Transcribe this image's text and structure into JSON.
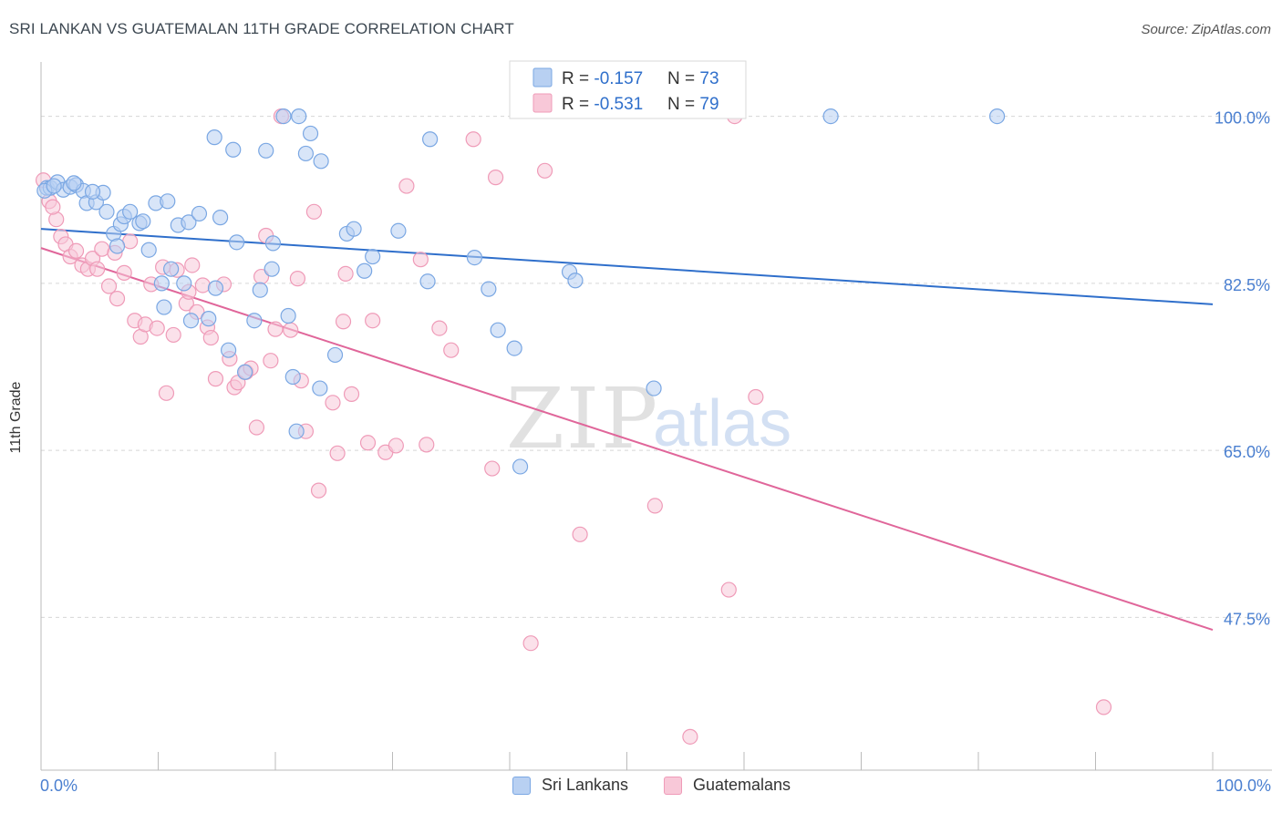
{
  "header": {
    "title": "SRI LANKAN VS GUATEMALAN 11TH GRADE CORRELATION CHART",
    "source": "Source: ZipAtlas.com"
  },
  "watermark": {
    "zip": "ZIP",
    "atlas": "atlas"
  },
  "colors": {
    "blue_fill": "#b8d0f2",
    "blue_stroke": "#7aa7e3",
    "blue_line": "#2f6fcb",
    "pink_fill": "#f8c8d8",
    "pink_stroke": "#ef9bb8",
    "pink_line": "#e0669a",
    "axis_text": "#4a7fd0",
    "grid": "#d6d6d6"
  },
  "legend_top": {
    "rows": [
      {
        "r_label": "R = ",
        "r_value": "-0.157",
        "n_label": "N = ",
        "n_value": "73"
      },
      {
        "r_label": "R = ",
        "r_value": "-0.531",
        "n_label": "N = ",
        "n_value": "79"
      }
    ]
  },
  "legend_bottom": {
    "series1": "Sri Lankans",
    "series2": "Guatemalans"
  },
  "chart_data": {
    "type": "scatter",
    "title": "SRI LANKAN VS GUATEMALAN 11TH GRADE CORRELATION CHART",
    "xlabel": "",
    "ylabel": "11th Grade",
    "xlim": [
      0,
      100
    ],
    "ylim": [
      31.5,
      105.5
    ],
    "x_tick_labels": [
      "0.0%",
      "100.0%"
    ],
    "y_ticks": [
      47.5,
      65.0,
      82.5,
      100.0
    ],
    "y_tick_labels": [
      "47.5%",
      "65.0%",
      "82.5%",
      "100.0%"
    ],
    "grid": true,
    "series": [
      {
        "name": "Sri Lankans",
        "color": "#b8d0f2",
        "R": -0.157,
        "N": 73,
        "trend": {
          "x": [
            0,
            100
          ],
          "y": [
            88.2,
            80.3
          ]
        },
        "points": [
          [
            0.5,
            92.5
          ],
          [
            0.8,
            92.5
          ],
          [
            1.4,
            93.1
          ],
          [
            1.9,
            92.3
          ],
          [
            2.5,
            92.6
          ],
          [
            3.0,
            92.8
          ],
          [
            3.6,
            92.2
          ],
          [
            3.9,
            90.9
          ],
          [
            4.7,
            91.0
          ],
          [
            5.3,
            92.0
          ],
          [
            5.6,
            90.0
          ],
          [
            6.2,
            87.7
          ],
          [
            6.5,
            86.4
          ],
          [
            6.8,
            88.7
          ],
          [
            7.1,
            89.5
          ],
          [
            7.6,
            90.0
          ],
          [
            8.4,
            88.8
          ],
          [
            8.7,
            89.0
          ],
          [
            9.2,
            86.0
          ],
          [
            9.8,
            90.9
          ],
          [
            10.3,
            82.5
          ],
          [
            10.5,
            80.0
          ],
          [
            10.8,
            91.1
          ],
          [
            11.1,
            84.0
          ],
          [
            11.7,
            88.6
          ],
          [
            12.2,
            82.5
          ],
          [
            12.6,
            88.9
          ],
          [
            12.8,
            78.6
          ],
          [
            13.5,
            89.8
          ],
          [
            14.3,
            78.8
          ],
          [
            14.9,
            82.0
          ],
          [
            15.3,
            89.4
          ],
          [
            16.0,
            75.5
          ],
          [
            16.4,
            96.5
          ],
          [
            16.7,
            86.8
          ],
          [
            14.8,
            97.8
          ],
          [
            17.4,
            73.2
          ],
          [
            18.2,
            78.6
          ],
          [
            18.7,
            81.8
          ],
          [
            19.2,
            96.4
          ],
          [
            19.7,
            84.0
          ],
          [
            19.8,
            86.7
          ],
          [
            20.7,
            100.0
          ],
          [
            21.1,
            79.1
          ],
          [
            21.5,
            72.7
          ],
          [
            21.8,
            67.0
          ],
          [
            22.0,
            100.0
          ],
          [
            22.6,
            96.1
          ],
          [
            23.0,
            98.2
          ],
          [
            23.8,
            71.5
          ],
          [
            23.9,
            95.3
          ],
          [
            25.1,
            75.0
          ],
          [
            26.1,
            87.7
          ],
          [
            26.7,
            88.2
          ],
          [
            27.6,
            83.8
          ],
          [
            28.3,
            85.3
          ],
          [
            30.5,
            88.0
          ],
          [
            33.0,
            82.7
          ],
          [
            33.2,
            97.6
          ],
          [
            37.0,
            85.2
          ],
          [
            38.2,
            81.9
          ],
          [
            39.0,
            77.6
          ],
          [
            40.4,
            75.7
          ],
          [
            40.9,
            63.3
          ],
          [
            45.1,
            83.7
          ],
          [
            45.6,
            82.8
          ],
          [
            52.3,
            71.5
          ],
          [
            67.4,
            100.0
          ],
          [
            81.6,
            100.0
          ],
          [
            0.3,
            92.2
          ],
          [
            2.8,
            93.0
          ],
          [
            4.4,
            92.1
          ],
          [
            1.1,
            92.7
          ]
        ]
      },
      {
        "name": "Guatemalans",
        "color": "#f8c8d8",
        "R": -0.531,
        "N": 79,
        "trend": {
          "x": [
            0,
            100
          ],
          "y": [
            86.2,
            46.2
          ]
        },
        "points": [
          [
            0.2,
            93.3
          ],
          [
            0.7,
            91.1
          ],
          [
            1.3,
            89.2
          ],
          [
            1.7,
            87.4
          ],
          [
            2.1,
            86.6
          ],
          [
            2.5,
            85.3
          ],
          [
            3.0,
            85.9
          ],
          [
            3.5,
            84.4
          ],
          [
            4.0,
            84.0
          ],
          [
            4.4,
            85.1
          ],
          [
            4.8,
            84.0
          ],
          [
            5.2,
            86.1
          ],
          [
            5.8,
            82.2
          ],
          [
            6.3,
            85.7
          ],
          [
            6.5,
            80.9
          ],
          [
            7.1,
            83.6
          ],
          [
            7.6,
            86.9
          ],
          [
            8.0,
            78.6
          ],
          [
            8.5,
            76.9
          ],
          [
            8.9,
            78.2
          ],
          [
            9.4,
            82.4
          ],
          [
            9.9,
            77.8
          ],
          [
            10.4,
            84.2
          ],
          [
            10.7,
            71.0
          ],
          [
            11.3,
            77.1
          ],
          [
            11.6,
            83.9
          ],
          [
            12.4,
            80.4
          ],
          [
            12.6,
            81.6
          ],
          [
            12.9,
            84.4
          ],
          [
            13.3,
            79.5
          ],
          [
            13.8,
            82.3
          ],
          [
            14.2,
            77.9
          ],
          [
            14.5,
            76.8
          ],
          [
            14.9,
            72.5
          ],
          [
            15.6,
            82.4
          ],
          [
            16.1,
            74.6
          ],
          [
            16.5,
            71.6
          ],
          [
            16.8,
            72.1
          ],
          [
            17.5,
            73.2
          ],
          [
            17.9,
            73.6
          ],
          [
            18.4,
            67.4
          ],
          [
            18.8,
            83.2
          ],
          [
            19.2,
            87.5
          ],
          [
            19.6,
            74.4
          ],
          [
            20.0,
            77.7
          ],
          [
            20.5,
            100.0
          ],
          [
            21.3,
            77.6
          ],
          [
            21.9,
            83.0
          ],
          [
            22.2,
            72.3
          ],
          [
            22.6,
            67.0
          ],
          [
            23.3,
            90.0
          ],
          [
            23.7,
            60.8
          ],
          [
            24.9,
            70.0
          ],
          [
            25.3,
            64.7
          ],
          [
            25.8,
            78.5
          ],
          [
            26.0,
            83.5
          ],
          [
            26.5,
            70.9
          ],
          [
            27.9,
            65.8
          ],
          [
            28.3,
            78.6
          ],
          [
            29.4,
            64.8
          ],
          [
            30.3,
            65.5
          ],
          [
            31.2,
            92.7
          ],
          [
            32.4,
            85.0
          ],
          [
            32.9,
            65.6
          ],
          [
            34.0,
            77.8
          ],
          [
            35.0,
            75.5
          ],
          [
            36.9,
            97.6
          ],
          [
            38.5,
            63.1
          ],
          [
            38.8,
            93.6
          ],
          [
            41.8,
            44.8
          ],
          [
            43.0,
            94.3
          ],
          [
            46.0,
            56.2
          ],
          [
            52.4,
            59.2
          ],
          [
            55.4,
            35.0
          ],
          [
            58.7,
            50.4
          ],
          [
            59.2,
            100.0
          ],
          [
            61.0,
            70.6
          ],
          [
            90.7,
            38.1
          ],
          [
            1.0,
            90.5
          ]
        ]
      }
    ]
  }
}
